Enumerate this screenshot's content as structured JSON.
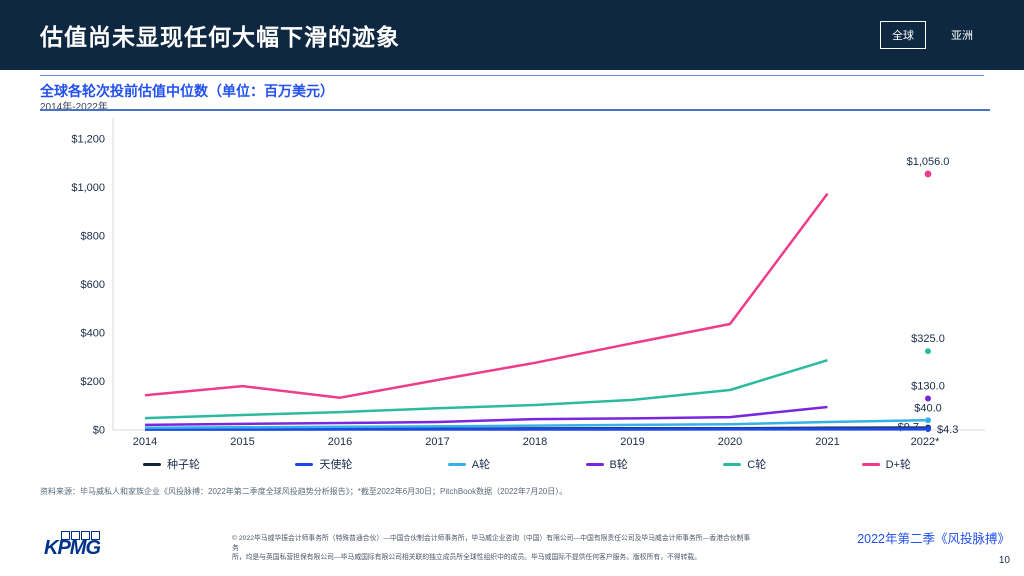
{
  "header": {
    "title": "估值尚未显现任何大幅下滑的迹象",
    "toggle_global": "全球",
    "toggle_asia": "亚洲"
  },
  "chart": {
    "title": "全球各轮次投前估值中位数（单位：百万美元）",
    "subtitle": "2014年-2022年",
    "source": "资料来源：毕马威私人和家族企业《风投脉搏：2022年第二季度全球风投趋势分析报告》；*截至2022年6月30日；PitchBook数据（2022年7月20日）。"
  },
  "chart_data": {
    "type": "line",
    "title": "全球各轮次投前估值中位数（单位：百万美元）",
    "subtitle": "2014年-2022年",
    "x": [
      "2014",
      "2015",
      "2016",
      "2017",
      "2018",
      "2019",
      "2020",
      "2021",
      "2022*"
    ],
    "ylim": [
      0,
      1200
    ],
    "ytick_labels": [
      "$0",
      "$200",
      "$400",
      "$600",
      "$800",
      "$1,000",
      "$1,200"
    ],
    "grid": false,
    "legend_position": "bottom",
    "series": [
      {
        "name": "种子轮",
        "color": "#13253a",
        "values": [
          4.0,
          4.5,
          5.0,
          5.5,
          6.5,
          7.0,
          7.5,
          9.0,
          9.7
        ],
        "end_label": "$9.7",
        "end_label_placement": "left",
        "line_ends_at": "2022"
      },
      {
        "name": "天使轮",
        "color": "#1e49e0",
        "values": [
          2.7,
          3.0,
          3.1,
          3.3,
          3.5,
          3.7,
          4.0,
          4.2,
          4.3
        ],
        "end_label": "$4.3",
        "end_label_placement": "right",
        "line_ends_at": "2022"
      },
      {
        "name": "A轮",
        "color": "#35b0e8",
        "values": [
          9,
          11,
          13,
          15,
          18,
          21,
          24,
          33,
          40.0
        ],
        "end_label": "$40.0",
        "end_label_placement": "above",
        "line_ends_at": "2022"
      },
      {
        "name": "B轮",
        "color": "#7a26df",
        "values": [
          21,
          25,
          29,
          33,
          45,
          48,
          53,
          95,
          130.0
        ],
        "end_label": "$130.0",
        "end_label_placement": "above",
        "line_ends_at": "2021"
      },
      {
        "name": "C轮",
        "color": "#2bb9a0",
        "values": [
          49,
          62,
          74,
          90,
          103,
          124,
          165,
          288,
          325.0
        ],
        "end_label": "$325.0",
        "end_label_placement": "above",
        "line_ends_at": "2021"
      },
      {
        "name": "D+轮",
        "color": "#ee3c8c",
        "values": [
          143,
          181,
          133,
          206,
          277,
          358,
          437,
          975,
          1056.0
        ],
        "end_label": "$1,056.0",
        "end_label_placement": "above",
        "line_ends_at": "2021"
      }
    ]
  },
  "footer": {
    "disclaimer_line1": "© 2022毕马威华振会计师事务所（特殊普通合伙）—中国合伙制会计师事务所，毕马威企业咨询（中国）有限公司—中国有限责任公司及毕马威会计师事务所—香港合伙制事务",
    "disclaimer_line2": "所，均是与英国私营担保有限公司—毕马威国际有限公司相关联的独立成员所全球性组织中的成员。毕马威国际不提供任何客户服务。版权所有，不得转载。",
    "brand": "KPMG",
    "report_name": "2022年第二季《风投脉搏》",
    "page_number": "10"
  },
  "colors": {
    "header_bg": "#0d2840",
    "accent_blue": "#2251f0",
    "divider_blue": "#4a72c4",
    "axis_gray": "#d9d9d9",
    "tick_text": "#1a2b49"
  }
}
